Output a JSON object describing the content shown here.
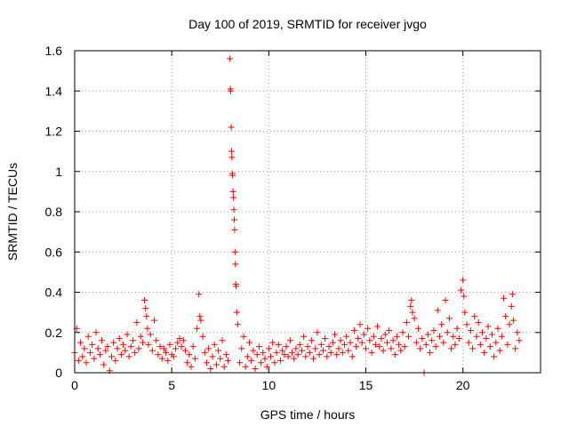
{
  "chart_data": {
    "type": "scatter",
    "title": "Day 100 of 2019, SRMTID for receiver jvgo",
    "xlabel": "GPS time / hours",
    "ylabel": "SRMTID / TECUs",
    "xlim": [
      0,
      24
    ],
    "ylim": [
      0,
      1.6
    ],
    "xticks": [
      0,
      5,
      10,
      15,
      20
    ],
    "xtick_labels": [
      "0",
      "5",
      "10",
      "15",
      "20"
    ],
    "yticks": [
      0,
      0.2,
      0.4,
      0.6,
      0.8,
      1,
      1.2,
      1.4,
      1.6
    ],
    "ytick_labels": [
      "0",
      "0.2",
      "0.4",
      "0.6",
      "0.8",
      "1",
      "1.2",
      "1.4",
      "1.6"
    ],
    "grid": true,
    "marker": "+",
    "marker_color": "#ff0000",
    "series": [
      {
        "name": "jvgo",
        "points": [
          [
            0.0,
            0.1
          ],
          [
            0.1,
            0.22
          ],
          [
            0.2,
            0.06
          ],
          [
            0.3,
            0.15
          ],
          [
            0.4,
            0.08
          ],
          [
            0.5,
            0.12
          ],
          [
            0.6,
            0.05
          ],
          [
            0.7,
            0.18
          ],
          [
            0.8,
            0.1
          ],
          [
            0.9,
            0.14
          ],
          [
            1.0,
            0.07
          ],
          [
            1.1,
            0.2
          ],
          [
            1.2,
            0.12
          ],
          [
            1.3,
            0.09
          ],
          [
            1.4,
            0.16
          ],
          [
            1.5,
            0.04
          ],
          [
            1.6,
            0.11
          ],
          [
            1.7,
            0.13
          ],
          [
            1.8,
            0.01
          ],
          [
            1.9,
            0.08
          ],
          [
            2.0,
            0.15
          ],
          [
            2.1,
            0.06
          ],
          [
            2.2,
            0.12
          ],
          [
            2.3,
            0.17
          ],
          [
            2.4,
            0.09
          ],
          [
            2.5,
            0.14
          ],
          [
            2.6,
            0.11
          ],
          [
            2.7,
            0.19
          ],
          [
            2.8,
            0.08
          ],
          [
            2.9,
            0.13
          ],
          [
            3.0,
            0.16
          ],
          [
            3.1,
            0.1
          ],
          [
            3.2,
            0.25
          ],
          [
            3.3,
            0.12
          ],
          [
            3.4,
            0.18
          ],
          [
            3.5,
            0.15
          ],
          [
            3.6,
            0.36
          ],
          [
            3.65,
            0.32
          ],
          [
            3.7,
            0.28
          ],
          [
            3.75,
            0.22
          ],
          [
            3.8,
            0.14
          ],
          [
            3.9,
            0.19
          ],
          [
            4.0,
            0.11
          ],
          [
            4.1,
            0.26
          ],
          [
            4.2,
            0.16
          ],
          [
            4.3,
            0.09
          ],
          [
            4.4,
            0.13
          ],
          [
            4.5,
            0.07
          ],
          [
            4.6,
            0.12
          ],
          [
            4.7,
            0.1
          ],
          [
            4.8,
            0.06
          ],
          [
            4.9,
            0.14
          ],
          [
            5.0,
            0.09
          ],
          [
            5.1,
            0.08
          ],
          [
            5.2,
            0.12
          ],
          [
            5.3,
            0.15
          ],
          [
            5.4,
            0.17
          ],
          [
            5.5,
            0.13
          ],
          [
            5.6,
            0.16
          ],
          [
            5.7,
            0.11
          ],
          [
            5.8,
            0.05
          ],
          [
            5.9,
            0.09
          ],
          [
            6.0,
            0.03
          ],
          [
            6.1,
            0.13
          ],
          [
            6.2,
            0.07
          ],
          [
            6.3,
            0.22
          ],
          [
            6.4,
            0.39
          ],
          [
            6.45,
            0.28
          ],
          [
            6.5,
            0.26
          ],
          [
            6.6,
            0.18
          ],
          [
            6.7,
            0.1
          ],
          [
            6.8,
            0.05
          ],
          [
            6.9,
            0.12
          ],
          [
            7.0,
            0.02
          ],
          [
            7.1,
            0.08
          ],
          [
            7.2,
            0.14
          ],
          [
            7.3,
            0.04
          ],
          [
            7.4,
            0.11
          ],
          [
            7.5,
            0.07
          ],
          [
            7.6,
            0.16
          ],
          [
            7.7,
            0.03
          ],
          [
            7.8,
            0.09
          ],
          [
            7.9,
            0.06
          ],
          [
            8.0,
            1.56
          ],
          [
            8.02,
            1.41
          ],
          [
            8.04,
            1.4
          ],
          [
            8.06,
            1.22
          ],
          [
            8.08,
            1.1
          ],
          [
            8.1,
            1.07
          ],
          [
            8.12,
            0.99
          ],
          [
            8.14,
            0.98
          ],
          [
            8.16,
            0.9
          ],
          [
            8.18,
            0.87
          ],
          [
            8.2,
            0.81
          ],
          [
            8.22,
            0.76
          ],
          [
            8.24,
            0.71
          ],
          [
            8.26,
            0.6
          ],
          [
            8.28,
            0.54
          ],
          [
            8.3,
            0.44
          ],
          [
            8.32,
            0.43
          ],
          [
            8.35,
            0.3
          ],
          [
            8.4,
            0.24
          ],
          [
            8.5,
            0.05
          ],
          [
            8.6,
            0.12
          ],
          [
            8.7,
            0.18
          ],
          [
            8.8,
            0.03
          ],
          [
            8.9,
            0.08
          ],
          [
            9.0,
            0.15
          ],
          [
            9.1,
            0.06
          ],
          [
            9.2,
            0.11
          ],
          [
            9.3,
            0.02
          ],
          [
            9.4,
            0.09
          ],
          [
            9.5,
            0.13
          ],
          [
            9.6,
            0.05
          ],
          [
            9.7,
            0.1
          ],
          [
            9.8,
            0.07
          ],
          [
            9.9,
            0.03
          ],
          [
            10.0,
            0.12
          ],
          [
            10.1,
            0.08
          ],
          [
            10.2,
            0.15
          ],
          [
            10.3,
            0.05
          ],
          [
            10.4,
            0.1
          ],
          [
            10.5,
            0.14
          ],
          [
            10.6,
            0.06
          ],
          [
            10.7,
            0.11
          ],
          [
            10.8,
            0.09
          ],
          [
            10.9,
            0.13
          ],
          [
            11.0,
            0.08
          ],
          [
            11.1,
            0.16
          ],
          [
            11.2,
            0.1
          ],
          [
            11.3,
            0.07
          ],
          [
            11.4,
            0.12
          ],
          [
            11.5,
            0.09
          ],
          [
            11.6,
            0.14
          ],
          [
            11.7,
            0.11
          ],
          [
            11.8,
            0.18
          ],
          [
            11.9,
            0.08
          ],
          [
            12.0,
            0.13
          ],
          [
            12.1,
            0.1
          ],
          [
            12.2,
            0.16
          ],
          [
            12.3,
            0.07
          ],
          [
            12.4,
            0.12
          ],
          [
            12.5,
            0.2
          ],
          [
            12.6,
            0.09
          ],
          [
            12.7,
            0.14
          ],
          [
            12.8,
            0.11
          ],
          [
            12.9,
            0.17
          ],
          [
            13.0,
            0.08
          ],
          [
            13.1,
            0.13
          ],
          [
            13.2,
            0.1
          ],
          [
            13.3,
            0.15
          ],
          [
            13.4,
            0.19
          ],
          [
            13.5,
            0.09
          ],
          [
            13.6,
            0.12
          ],
          [
            13.7,
            0.16
          ],
          [
            13.8,
            0.1
          ],
          [
            13.9,
            0.14
          ],
          [
            14.0,
            0.18
          ],
          [
            14.1,
            0.11
          ],
          [
            14.2,
            0.15
          ],
          [
            14.3,
            0.08
          ],
          [
            14.4,
            0.21
          ],
          [
            14.5,
            0.13
          ],
          [
            14.6,
            0.17
          ],
          [
            14.7,
            0.24
          ],
          [
            14.8,
            0.15
          ],
          [
            14.9,
            0.19
          ],
          [
            15.0,
            0.12
          ],
          [
            15.1,
            0.22
          ],
          [
            15.2,
            0.16
          ],
          [
            15.3,
            0.1
          ],
          [
            15.4,
            0.18
          ],
          [
            15.5,
            0.14
          ],
          [
            15.6,
            0.23
          ],
          [
            15.7,
            0.13
          ],
          [
            15.8,
            0.17
          ],
          [
            15.9,
            0.11
          ],
          [
            16.0,
            0.19
          ],
          [
            16.1,
            0.15
          ],
          [
            16.2,
            0.21
          ],
          [
            16.3,
            0.12
          ],
          [
            16.4,
            0.16
          ],
          [
            16.5,
            0.09
          ],
          [
            16.6,
            0.18
          ],
          [
            16.7,
            0.14
          ],
          [
            16.8,
            0.11
          ],
          [
            16.9,
            0.2
          ],
          [
            17.0,
            0.13
          ],
          [
            17.1,
            0.25
          ],
          [
            17.2,
            0.18
          ],
          [
            17.3,
            0.33
          ],
          [
            17.35,
            0.36
          ],
          [
            17.4,
            0.3
          ],
          [
            17.5,
            0.27
          ],
          [
            17.6,
            0.15
          ],
          [
            17.7,
            0.22
          ],
          [
            17.8,
            0.12
          ],
          [
            17.9,
            0.17
          ],
          [
            18.0,
            0.0
          ],
          [
            18.1,
            0.14
          ],
          [
            18.2,
            0.19
          ],
          [
            18.3,
            0.1
          ],
          [
            18.4,
            0.16
          ],
          [
            18.5,
            0.21
          ],
          [
            18.6,
            0.13
          ],
          [
            18.7,
            0.31
          ],
          [
            18.8,
            0.18
          ],
          [
            18.9,
            0.24
          ],
          [
            19.0,
            0.15
          ],
          [
            19.1,
            0.36
          ],
          [
            19.2,
            0.2
          ],
          [
            19.3,
            0.27
          ],
          [
            19.4,
            0.12
          ],
          [
            19.5,
            0.18
          ],
          [
            19.6,
            0.14
          ],
          [
            19.7,
            0.22
          ],
          [
            19.8,
            0.17
          ],
          [
            19.9,
            0.41
          ],
          [
            20.0,
            0.46
          ],
          [
            20.05,
            0.38
          ],
          [
            20.1,
            0.3
          ],
          [
            20.2,
            0.24
          ],
          [
            20.3,
            0.15
          ],
          [
            20.4,
            0.21
          ],
          [
            20.5,
            0.12
          ],
          [
            20.6,
            0.28
          ],
          [
            20.7,
            0.18
          ],
          [
            20.8,
            0.25
          ],
          [
            20.9,
            0.14
          ],
          [
            21.0,
            0.2
          ],
          [
            21.1,
            0.1
          ],
          [
            21.2,
            0.17
          ],
          [
            21.3,
            0.23
          ],
          [
            21.4,
            0.13
          ],
          [
            21.5,
            0.19
          ],
          [
            21.6,
            0.08
          ],
          [
            21.7,
            0.15
          ],
          [
            21.8,
            0.22
          ],
          [
            21.9,
            0.11
          ],
          [
            22.0,
            0.18
          ],
          [
            22.1,
            0.37
          ],
          [
            22.2,
            0.28
          ],
          [
            22.3,
            0.14
          ],
          [
            22.4,
            0.24
          ],
          [
            22.5,
            0.33
          ],
          [
            22.55,
            0.39
          ],
          [
            22.6,
            0.26
          ],
          [
            22.7,
            0.12
          ],
          [
            22.8,
            0.2
          ],
          [
            22.9,
            0.16
          ]
        ]
      }
    ]
  }
}
